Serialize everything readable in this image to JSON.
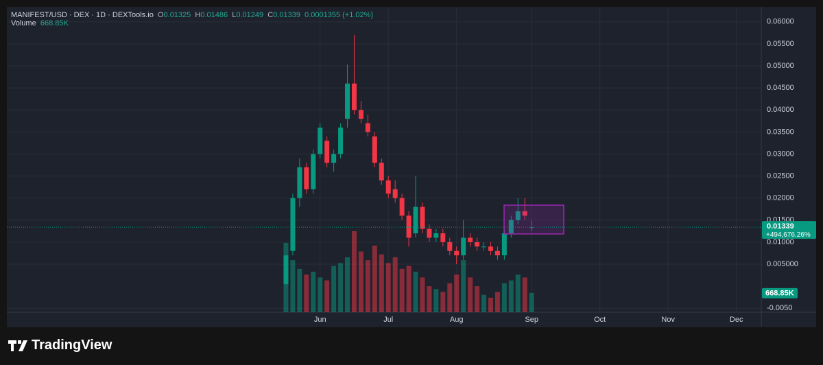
{
  "chart_data": {
    "type": "candlestick",
    "title": "MANIFEST/USD · DEX · 1D · DEXTools.io",
    "ohlc_letters": [
      "O",
      "H",
      "L",
      "C"
    ],
    "change": 0.0001355,
    "change_pct_label": "(+1.02%)",
    "since_start_label": "+494,676.26%",
    "brand": "TradingView",
    "up_color": "#089981",
    "down_color": "#f23645",
    "grid": true,
    "categories": [
      null,
      null,
      null,
      null,
      null,
      "Jun",
      null,
      null,
      null,
      null,
      null,
      null,
      null,
      null,
      null,
      "Jul",
      null,
      null,
      null,
      null,
      null,
      null,
      null,
      null,
      null,
      "Aug",
      null,
      null,
      null,
      null,
      null,
      null,
      null,
      null,
      null,
      null,
      "Sep",
      null,
      null,
      null,
      null,
      null,
      null,
      null,
      null,
      null,
      "Oct",
      null,
      null,
      null,
      null,
      null,
      null,
      null,
      null,
      null,
      "Nov",
      null,
      null,
      null,
      null,
      null,
      null,
      null,
      null,
      null,
      "Dec",
      null,
      null,
      null
    ],
    "open": [
      0.0005,
      0.008,
      0.02,
      0.027,
      0.022,
      0.03,
      0.033,
      0.028,
      0.03,
      0.038,
      0.046,
      0.04,
      0.037,
      0.034,
      0.028,
      0.024,
      0.022,
      0.02,
      0.016,
      0.012,
      0.018,
      0.013,
      0.011,
      0.012,
      0.01,
      0.008,
      0.007,
      0.011,
      0.01,
      0.009,
      0.009,
      0.008,
      0.007,
      0.012,
      0.015,
      0.017,
      0.01325,
      null,
      null,
      null,
      null,
      null,
      null,
      null,
      null,
      null,
      null,
      null,
      null,
      null,
      null,
      null,
      null,
      null,
      null,
      null,
      null,
      null,
      null,
      null,
      null,
      null,
      null,
      null,
      null,
      null,
      null,
      null,
      null,
      null
    ],
    "high": [
      0.007,
      0.021,
      0.029,
      0.028,
      0.031,
      0.037,
      0.034,
      0.031,
      0.037,
      0.0503,
      0.057,
      0.042,
      0.039,
      0.035,
      0.029,
      0.025,
      0.024,
      0.021,
      0.017,
      0.025,
      0.019,
      0.014,
      0.013,
      0.013,
      0.011,
      0.009,
      0.015,
      0.012,
      0.011,
      0.01,
      0.01,
      0.009,
      0.013,
      0.016,
      0.02,
      0.02,
      0.01486,
      null,
      null,
      null,
      null,
      null,
      null,
      null,
      null,
      null,
      null,
      null,
      null,
      null,
      null,
      null,
      null,
      null,
      null,
      null,
      null,
      null,
      null,
      null,
      null,
      null,
      null,
      null,
      null,
      null,
      null,
      null,
      null,
      null
    ],
    "low": [
      0.0003,
      0.007,
      0.018,
      0.021,
      0.021,
      0.029,
      0.027,
      0.026,
      0.029,
      0.036,
      0.039,
      0.037,
      0.034,
      0.027,
      0.023,
      0.02,
      0.019,
      0.015,
      0.009,
      0.011,
      0.012,
      0.01,
      0.01,
      0.009,
      0.007,
      0.005,
      0.006,
      0.009,
      0.008,
      0.008,
      0.007,
      0.006,
      0.006,
      0.011,
      0.014,
      0.015,
      0.01249,
      null,
      null,
      null,
      null,
      null,
      null,
      null,
      null,
      null,
      null,
      null,
      null,
      null,
      null,
      null,
      null,
      null,
      null,
      null,
      null,
      null,
      null,
      null,
      null,
      null,
      null,
      null,
      null,
      null,
      null,
      null,
      null,
      null
    ],
    "close": [
      0.007,
      0.02,
      0.027,
      0.022,
      0.03,
      0.036,
      0.028,
      0.03,
      0.036,
      0.046,
      0.04,
      0.038,
      0.035,
      0.028,
      0.024,
      0.021,
      0.02,
      0.016,
      0.011,
      0.018,
      0.013,
      0.011,
      0.012,
      0.01,
      0.008,
      0.007,
      0.011,
      0.01,
      0.009,
      0.009,
      0.008,
      0.007,
      0.012,
      0.015,
      0.017,
      0.016,
      0.01339,
      null,
      null,
      null,
      null,
      null,
      null,
      null,
      null,
      null,
      null,
      null,
      null,
      null,
      null,
      null,
      null,
      null,
      null,
      null,
      null,
      null,
      null,
      null,
      null,
      null,
      null,
      null,
      null,
      null,
      null,
      null,
      null,
      null
    ],
    "volume": {
      "name": "Volume",
      "last_label": "668.85K",
      "values": [
        2400000,
        1800000,
        1500000,
        1300000,
        1400000,
        1200000,
        1100000,
        1600000,
        1700000,
        1900000,
        2800000,
        2100000,
        1800000,
        2300000,
        2000000,
        1700000,
        1900000,
        1500000,
        1600000,
        1400000,
        1200000,
        900000,
        800000,
        700000,
        1000000,
        1300000,
        1800000,
        1200000,
        900000,
        600000,
        500000,
        700000,
        1000000,
        1100000,
        1300000,
        1200000,
        668850,
        null,
        null,
        null,
        null,
        null,
        null,
        null,
        null,
        null,
        null,
        null,
        null,
        null,
        null,
        null,
        null,
        null,
        null,
        null,
        null,
        null,
        null,
        null,
        null,
        null,
        null,
        null,
        null,
        null,
        null,
        null,
        null,
        null
      ]
    },
    "ylim": [
      -0.0059,
      0.0634
    ],
    "yticks": [
      {
        "value": 0.06,
        "label": "0.06000"
      },
      {
        "value": 0.055,
        "label": "0.05500"
      },
      {
        "value": 0.05,
        "label": "0.05000"
      },
      {
        "value": 0.045,
        "label": "0.04500"
      },
      {
        "value": 0.04,
        "label": "0.04000"
      },
      {
        "value": 0.035,
        "label": "0.03500"
      },
      {
        "value": 0.03,
        "label": "0.03000"
      },
      {
        "value": 0.025,
        "label": "0.02500"
      },
      {
        "value": 0.02,
        "label": "0.02000"
      },
      {
        "value": 0.015,
        "label": "0.01500"
      },
      {
        "value": 0.01,
        "label": "0.01000"
      },
      {
        "value": 0.005,
        "label": "0.005000"
      },
      {
        "value": -0.005,
        "label": "-0.0050"
      }
    ]
  }
}
